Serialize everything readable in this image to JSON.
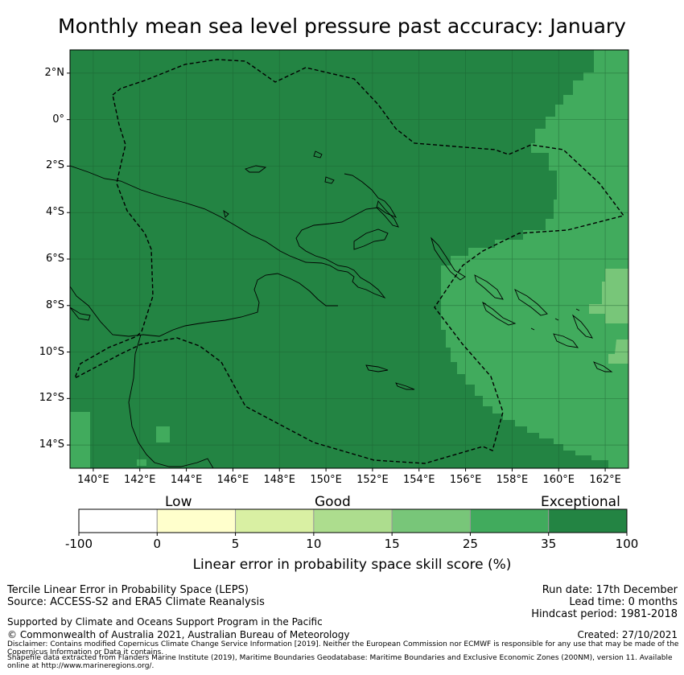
{
  "title": "Monthly mean sea level pressure past accuracy: January",
  "map": {
    "lat_labels": [
      "2°N",
      "0°",
      "2°S",
      "4°S",
      "6°S",
      "8°S",
      "10°S",
      "12°S",
      "14°S"
    ],
    "lat_values": [
      2,
      0,
      -2,
      -4,
      -6,
      -8,
      -10,
      -12,
      -14
    ],
    "lon_labels": [
      "140°E",
      "142°E",
      "144°E",
      "146°E",
      "148°E",
      "150°E",
      "152°E",
      "154°E",
      "156°E",
      "158°E",
      "160°E",
      "162°E"
    ],
    "lon_values": [
      140,
      142,
      144,
      146,
      148,
      150,
      152,
      154,
      156,
      158,
      160,
      162
    ],
    "lon_range": [
      139,
      163
    ],
    "lat_range": [
      -15,
      3
    ],
    "colors": {
      "exceptional": "#238443",
      "band_25_35": "#41ab5d",
      "band_15_25": "#78c679"
    }
  },
  "colorbar": {
    "category_labels": [
      "Low",
      "Good",
      "Exceptional"
    ],
    "ticks": [
      "-100",
      "0",
      "5",
      "10",
      "15",
      "25",
      "35",
      "100"
    ],
    "colors": [
      "#ffffff",
      "#ffffcc",
      "#d9f0a3",
      "#addd8e",
      "#78c679",
      "#41ab5d",
      "#238443"
    ],
    "title": "Linear error in probability space skill score (%)"
  },
  "footer": {
    "left_line1": "Tercile Linear Error in Probability Space (LEPS)",
    "left_line2": "Source: ACCESS-S2 and ERA5 Climate Reanalysis",
    "supported": "Supported by Climate and Oceans Support Program in the Pacific",
    "copyright": "© Commonwealth of Australia 2021, Australian Bureau of Meteorology",
    "run_date": "Run date: 17th December",
    "lead_time": "Lead time: 0 months",
    "hindcast": "Hindcast period: 1981-2018",
    "created": "Created: 27/10/2021",
    "disclaimer1": "Disclaimer: Contains modified Copernicus Climate Change Service Information [2019]. Neither the European Commission nor ECMWF is responsible for any use that may be made of the Copernicus Information or Data it contains.",
    "disclaimer2": "Shapefile data extracted from Flanders Marine Institute (2019), Maritime Boundaries Geodatabase: Maritime Boundaries and Exclusive Economic Zones (200NM), version 11. Available online at http://www.marineregions.org/."
  }
}
